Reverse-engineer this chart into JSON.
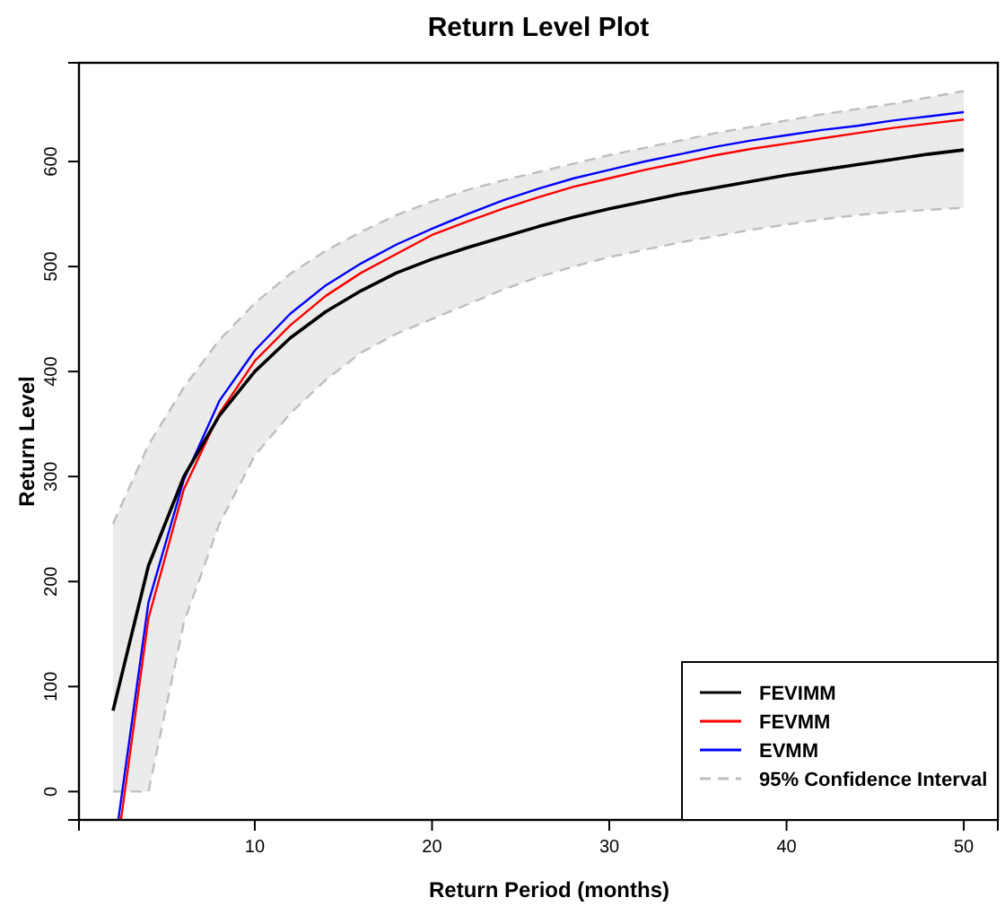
{
  "chart_data": {
    "type": "line",
    "title": "Return Level Plot",
    "xlabel": "Return Period (months)",
    "ylabel": "Return Level",
    "x": [
      2,
      4,
      6,
      8,
      10,
      12,
      14,
      16,
      18,
      20,
      22,
      24,
      26,
      28,
      30,
      32,
      34,
      36,
      38,
      40,
      42,
      44,
      46,
      48,
      50
    ],
    "xlim": [
      0.08,
      51.92
    ],
    "ylim": [
      -27,
      694
    ],
    "xticks": [
      10,
      20,
      30,
      40,
      50
    ],
    "yticks": [
      0,
      100,
      200,
      300,
      400,
      500,
      600
    ],
    "grid": false,
    "legend": "bottom right",
    "line_style": "solid",
    "marker": "none",
    "series": [
      {
        "name": "FEVIMM",
        "color": "#000000",
        "values": [
          77,
          215,
          300,
          358,
          400,
          432,
          457,
          477,
          494,
          507,
          518,
          528,
          538,
          547,
          555,
          562,
          569,
          575,
          581,
          587,
          592,
          597,
          602,
          607,
          611
        ]
      },
      {
        "name": "FEVMM",
        "color": "#ff0000",
        "x": [
          2.45,
          4,
          6,
          8,
          10,
          12,
          14,
          16,
          18,
          20,
          22,
          24,
          26,
          28,
          30,
          32,
          34,
          36,
          38,
          40,
          42,
          44,
          46,
          48,
          50
        ],
        "values": [
          -27,
          165,
          288,
          360,
          410,
          444,
          472,
          494,
          512,
          530,
          543,
          555,
          566,
          576,
          584,
          592,
          599,
          606,
          612,
          617,
          622,
          627,
          632,
          636,
          640
        ]
      },
      {
        "name": "EVMM",
        "color": "#0000ff",
        "x": [
          2.3,
          4,
          6,
          8,
          10,
          12,
          14,
          16,
          18,
          20,
          22,
          24,
          26,
          28,
          30,
          32,
          34,
          36,
          38,
          40,
          42,
          44,
          46,
          48,
          50
        ],
        "values": [
          -27,
          180,
          297,
          372,
          420,
          455,
          482,
          503,
          521,
          536,
          550,
          563,
          574,
          584,
          592,
          600,
          607,
          614,
          620,
          625,
          630,
          634,
          639,
          643,
          647
        ]
      },
      {
        "name": "95% Confidence Interval",
        "color": "#bebebe",
        "line_style": "dashed",
        "values": [
          255,
          330,
          385,
          430,
          465,
          493,
          515,
          533,
          549,
          562,
          573,
          582,
          590,
          598,
          606,
          613,
          620,
          627,
          633,
          639,
          645,
          650,
          655,
          661,
          667
        ],
        "lower": [
          0,
          0,
          161,
          255,
          320,
          360,
          392,
          418,
          436,
          450,
          464,
          478,
          490,
          500,
          509,
          516,
          523,
          529,
          535,
          540,
          545,
          549,
          552,
          554,
          556
        ],
        "upper": [
          255,
          330,
          385,
          430,
          465,
          493,
          515,
          533,
          549,
          562,
          573,
          582,
          590,
          598,
          606,
          613,
          620,
          627,
          633,
          639,
          645,
          650,
          655,
          661,
          667
        ]
      },
      {
        "color": "#bebebe",
        "line_style": "dashed",
        "values": [
          0,
          0,
          161,
          255,
          320,
          360,
          392,
          418,
          436,
          450,
          464,
          478,
          490,
          500,
          509,
          516,
          523,
          529,
          535,
          540,
          545,
          549,
          552,
          554,
          556
        ]
      }
    ]
  }
}
